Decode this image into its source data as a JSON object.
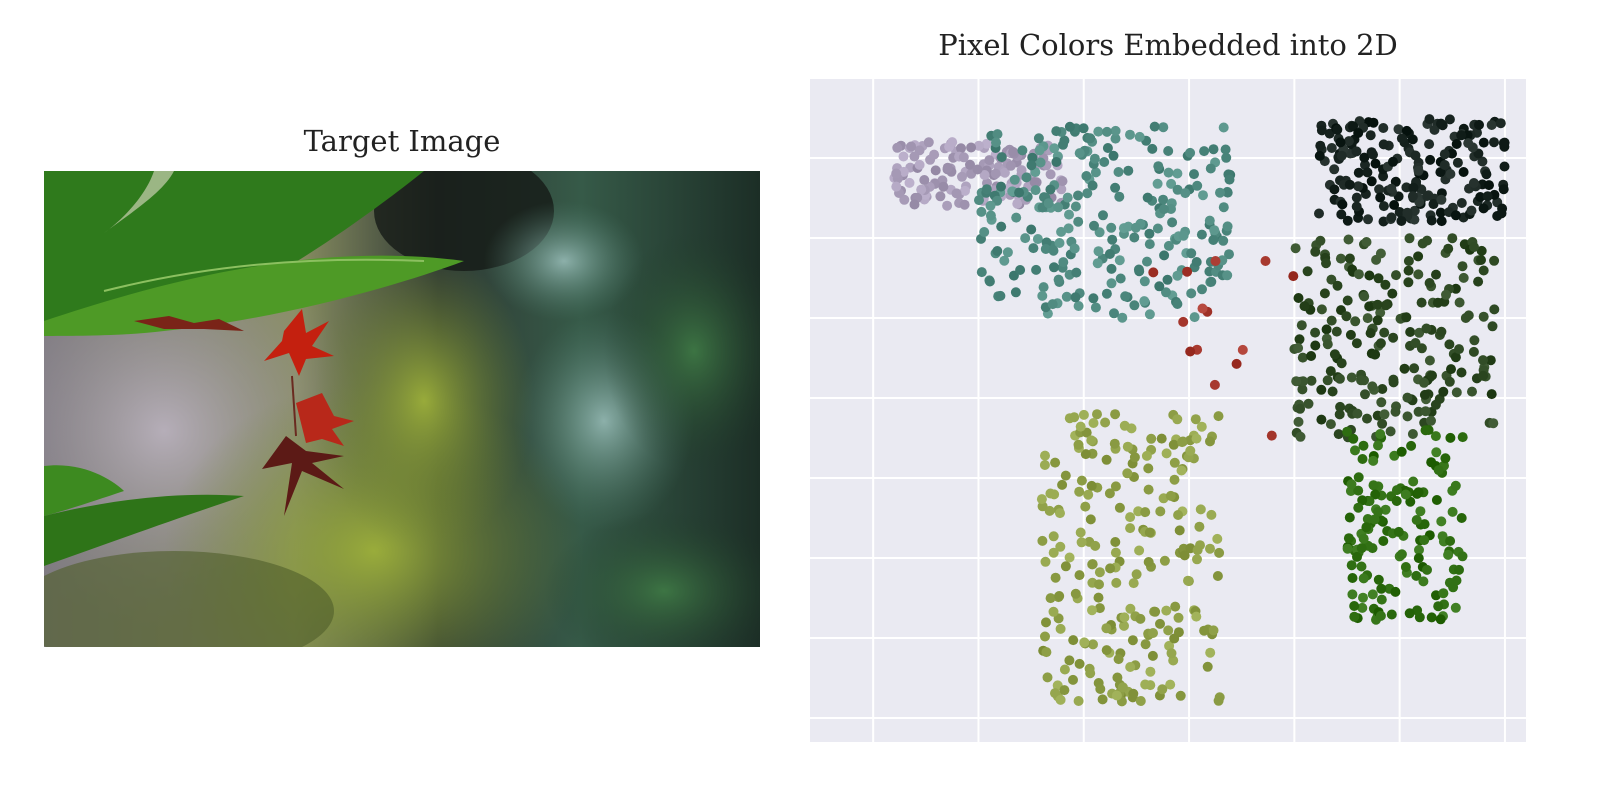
{
  "left_panel": {
    "title": "Target Image",
    "image_description": "Photo of red maple leaves hanging from a green leaf, blurred mossy background"
  },
  "right_panel": {
    "title": "Pixel Colors Embedded into 2D"
  },
  "chart_data": {
    "type": "scatter",
    "title": "Pixel Colors Embedded into 2D",
    "xlabel": "",
    "ylabel": "",
    "xlim": [
      -0.6,
      6.2
    ],
    "ylim": [
      -0.3,
      8.0
    ],
    "grid": true,
    "background_color": "#eaeaf2",
    "grid_color": "#ffffff",
    "point_count_approx": 1200,
    "color_regions": [
      {
        "name": "lavender-gray",
        "color": "#a89cb8",
        "x_range": [
          0.2,
          1.8
        ],
        "y_range": [
          6.4,
          7.2
        ]
      },
      {
        "name": "teal",
        "color": "#4f8a80",
        "x_range": [
          1.0,
          3.4
        ],
        "y_range": [
          5.0,
          7.4
        ]
      },
      {
        "name": "near-black",
        "color": "#182420",
        "x_range": [
          4.2,
          6.0
        ],
        "y_range": [
          6.2,
          7.5
        ]
      },
      {
        "name": "dark-green",
        "color": "#2f4a24",
        "x_range": [
          4.0,
          5.9
        ],
        "y_range": [
          3.5,
          6.0
        ]
      },
      {
        "name": "bright-green",
        "color": "#2f6e12",
        "x_range": [
          4.5,
          5.6
        ],
        "y_range": [
          1.2,
          3.6
        ]
      },
      {
        "name": "olive-yellow",
        "color": "#8fa048",
        "x_range": [
          1.6,
          3.3
        ],
        "y_range": [
          0.2,
          3.8
        ]
      },
      {
        "name": "red",
        "color": "#a83a30",
        "x_range": [
          2.5,
          4.0
        ],
        "y_range": [
          3.5,
          6.0
        ]
      }
    ]
  }
}
